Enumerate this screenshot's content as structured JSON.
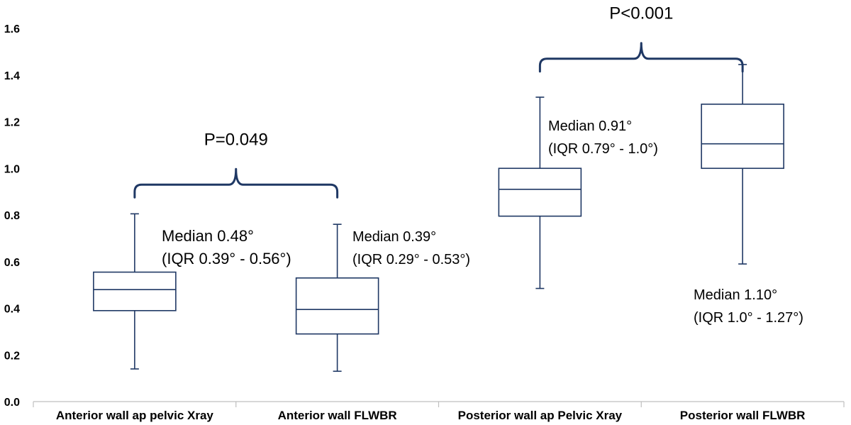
{
  "chart_data": {
    "type": "box",
    "title": "",
    "xlabel": "",
    "ylabel": "",
    "ylim": [
      0,
      1.6
    ],
    "yticks": [
      "0.0",
      "0.2",
      "0.4",
      "0.6",
      "0.8",
      "1.0",
      "1.2",
      "1.4",
      "1.6"
    ],
    "categories": [
      "Anterior wall ap pelvic Xray",
      "Anterior wall FLWBR",
      "Posterior wall ap Pelvic Xray",
      "Posterior wall FLWBR"
    ],
    "boxes": [
      {
        "min": 0.14,
        "q1": 0.39,
        "median": 0.48,
        "q3": 0.555,
        "max": 0.805,
        "annotation": {
          "line1": "Median 0.48°",
          "line2": "(IQR 0.39° - 0.56°)"
        }
      },
      {
        "min": 0.13,
        "q1": 0.29,
        "median": 0.395,
        "q3": 0.53,
        "max": 0.76,
        "annotation": {
          "line1": "Median 0.39°",
          "line2": "(IQR 0.29° - 0.53°)"
        }
      },
      {
        "min": 0.485,
        "q1": 0.795,
        "median": 0.91,
        "q3": 1.0,
        "max": 1.305,
        "annotation": {
          "line1": "Median 0.91°",
          "line2": "(IQR 0.79° - 1.0°)"
        }
      },
      {
        "min": 0.59,
        "q1": 1.0,
        "median": 1.105,
        "q3": 1.275,
        "max": 1.445,
        "annotation": {
          "line1": "Median 1.10°",
          "line2": "(IQR 1.0° - 1.27°)"
        }
      }
    ],
    "comparisons": [
      {
        "between": [
          0,
          1
        ],
        "label": "P=0.049",
        "level": 0.93
      },
      {
        "between": [
          2,
          3
        ],
        "label": "P<0.001",
        "level": 1.47
      }
    ],
    "colors": {
      "box_stroke": "#1f3864",
      "axis": "#bfbfbf"
    }
  }
}
